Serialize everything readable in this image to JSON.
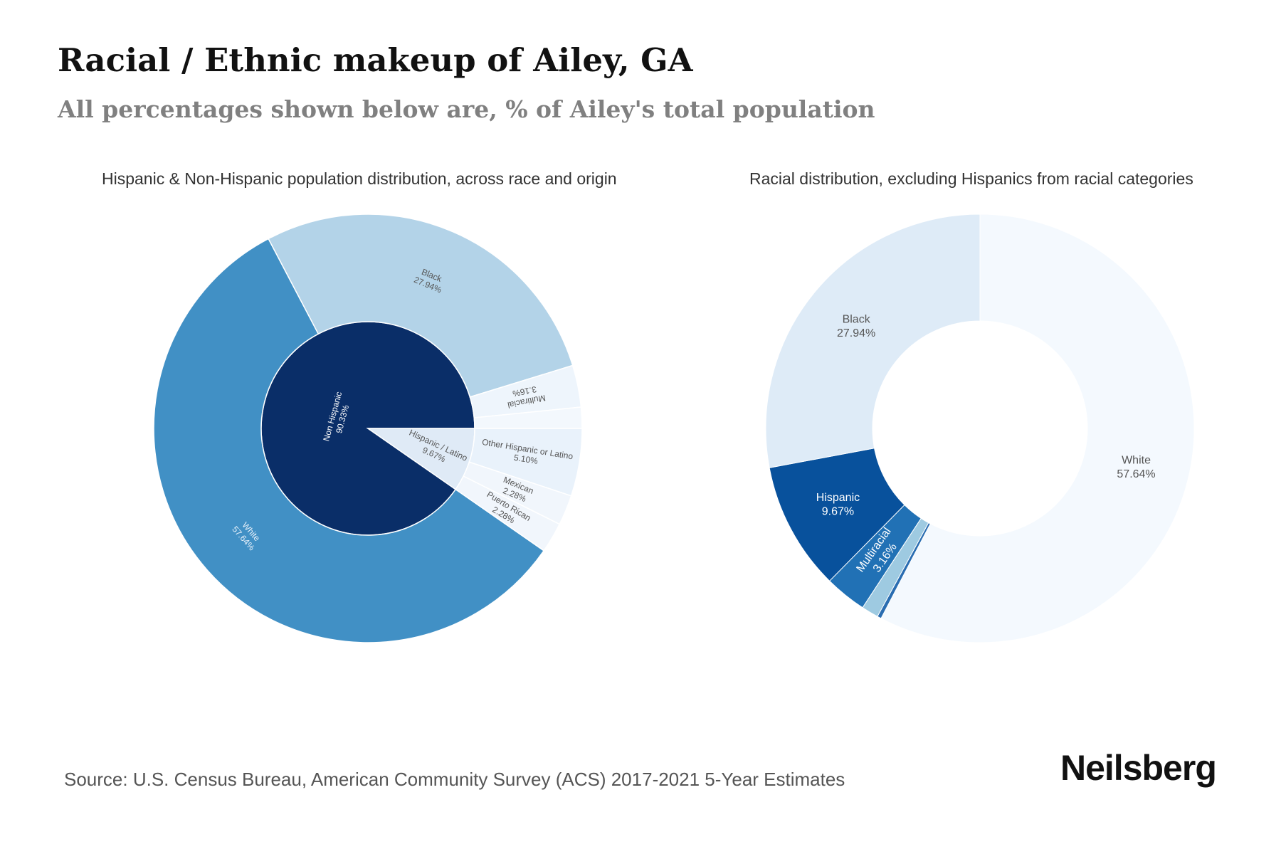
{
  "header": {
    "title": "Racial / Ethnic makeup of Ailey, GA",
    "subtitle": "All percentages shown below are, % of Ailey's total population"
  },
  "footer": {
    "source": "Source: U.S. Census Bureau, American Community Survey (ACS) 2017-2021 5-Year Estimates",
    "brand": "Neilsberg"
  },
  "chart_data": [
    {
      "type": "pie",
      "subtype": "sunburst",
      "title": "Hispanic & Non-Hispanic population distribution, across race and origin",
      "inner": [
        {
          "label": "Non Hispanic",
          "value": 90.33,
          "value_label": "90.33%",
          "color": "#0a2e68"
        },
        {
          "label": "Hispanic / Latino",
          "value": 9.67,
          "value_label": "9.67%",
          "color": "#dfeaf6"
        }
      ],
      "outer": [
        {
          "label": "White",
          "value": 57.64,
          "value_label": "57.64%",
          "parent": "Non Hispanic",
          "color": "#4190c5"
        },
        {
          "label": "Black",
          "value": 27.94,
          "value_label": "27.94%",
          "parent": "Non Hispanic",
          "color": "#b3d3e8"
        },
        {
          "label": "Multiracial",
          "value": 3.16,
          "value_label": "3.16%",
          "parent": "Non Hispanic",
          "color": "#eef5fc"
        },
        {
          "label": "",
          "value": 1.59,
          "parent": "Non Hispanic",
          "color": "#f3f8fd"
        },
        {
          "label": "Other Hispanic or Latino",
          "value": 5.1,
          "value_label": "5.10%",
          "parent": "Hispanic / Latino",
          "color": "#e9f2fb"
        },
        {
          "label": "Mexican",
          "value": 2.28,
          "value_label": "2.28%",
          "parent": "Hispanic / Latino",
          "color": "#f1f6fc"
        },
        {
          "label": "Puerto Rican",
          "value": 2.28,
          "value_label": "2.28%",
          "parent": "Hispanic / Latino",
          "color": "#f1f6fc"
        }
      ]
    },
    {
      "type": "pie",
      "subtype": "donut",
      "title": "Racial distribution, excluding Hispanics from racial categories",
      "slices": [
        {
          "label": "White",
          "value": 57.64,
          "value_label": "57.64%",
          "color": "#f4f9fe"
        },
        {
          "label": "",
          "value": 0.31,
          "color": "#2a6db1"
        },
        {
          "label": "",
          "value": 1.28,
          "color": "#9ecae1"
        },
        {
          "label": "Multiracial",
          "value": 3.16,
          "value_label": "3.16%",
          "color": "#2171b5"
        },
        {
          "label": "Hispanic",
          "value": 9.67,
          "value_label": "9.67%",
          "color": "#08519c"
        },
        {
          "label": "Black",
          "value": 27.94,
          "value_label": "27.94%",
          "color": "#deebf7"
        }
      ]
    }
  ]
}
